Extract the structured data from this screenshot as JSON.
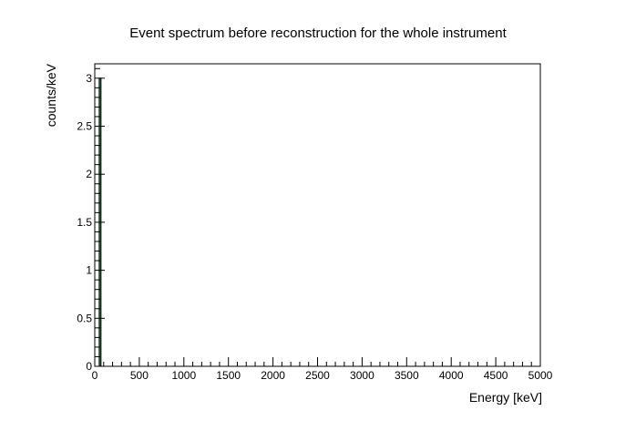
{
  "chart_data": {
    "type": "bar",
    "title": "Event spectrum before reconstruction for the whole instrument",
    "xlabel": "Energy [keV]",
    "ylabel": "counts/keV",
    "xlim": [
      0,
      5000
    ],
    "ylim": [
      0,
      3.15
    ],
    "x_ticks": [
      0,
      500,
      1000,
      1500,
      2000,
      2500,
      3000,
      3500,
      4000,
      4500,
      5000
    ],
    "x_tick_labels": [
      "0",
      "500",
      "1000",
      "1500",
      "2000",
      "2500",
      "3000",
      "3500",
      "4000",
      "4500",
      "5000"
    ],
    "y_ticks": [
      0,
      0.5,
      1,
      1.5,
      2,
      2.5,
      3
    ],
    "y_tick_labels": [
      "0",
      "0.5",
      "1",
      "1.5",
      "2",
      "2.5",
      "3"
    ],
    "bins": [
      {
        "x_low": 50,
        "x_high": 70,
        "value": 3
      }
    ],
    "bar_color": "#2e8b57",
    "grid": false,
    "legend": "none"
  }
}
